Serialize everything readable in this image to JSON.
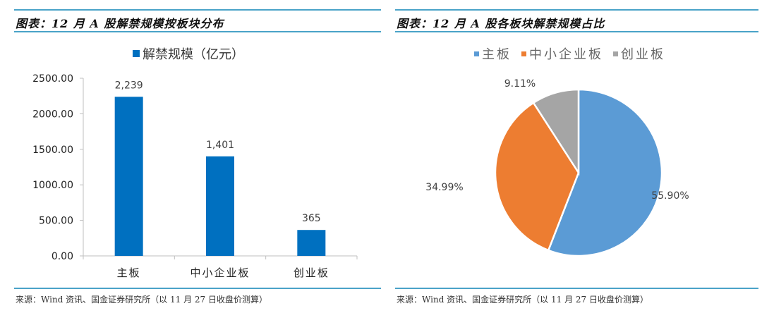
{
  "left": {
    "title": "图表：12 月 A 股解禁规模按板块分布",
    "legend_label": "解禁规模（亿元）",
    "source": "来源：Wind 资讯、国金证券研究所（以 11 月 27 日收盘价测算）"
  },
  "right": {
    "title": "图表：12 月 A 股各板块解禁规模占比",
    "legend": [
      {
        "label": "主板",
        "color": "#5b9bd5"
      },
      {
        "label": "中小企业板",
        "color": "#ed7d31"
      },
      {
        "label": "创业板",
        "color": "#a5a5a5"
      }
    ],
    "source": "来源：Wind 资讯、国金证券研究所（以 11 月 27 日收盘价测算）"
  },
  "colors": {
    "rule": "#4aa3c8",
    "bar": "#0070c0"
  },
  "chart_data": [
    {
      "type": "bar",
      "title": "图表：12 月 A 股解禁规模按板块分布",
      "categories": [
        "主板",
        "中小企业板",
        "创业板"
      ],
      "series": [
        {
          "name": "解禁规模（亿元）",
          "values": [
            2239,
            1401,
            365
          ]
        }
      ],
      "data_labels": [
        "2,239",
        "1,401",
        "365"
      ],
      "y_ticks": [
        "0.00",
        "500.00",
        "1000.00",
        "1500.00",
        "2000.00",
        "2500.00"
      ],
      "ylim": [
        0,
        2500
      ],
      "xlabel": "",
      "ylabel": "",
      "grid": false,
      "legend_position": "top"
    },
    {
      "type": "pie",
      "title": "图表：12 月 A 股各板块解禁规模占比",
      "categories": [
        "主板",
        "中小企业板",
        "创业板"
      ],
      "values": [
        55.9,
        34.99,
        9.11
      ],
      "data_labels": [
        "55.90%",
        "34.99%",
        "9.11%"
      ],
      "colors": [
        "#5b9bd5",
        "#ed7d31",
        "#a5a5a5"
      ],
      "legend_position": "top"
    }
  ]
}
